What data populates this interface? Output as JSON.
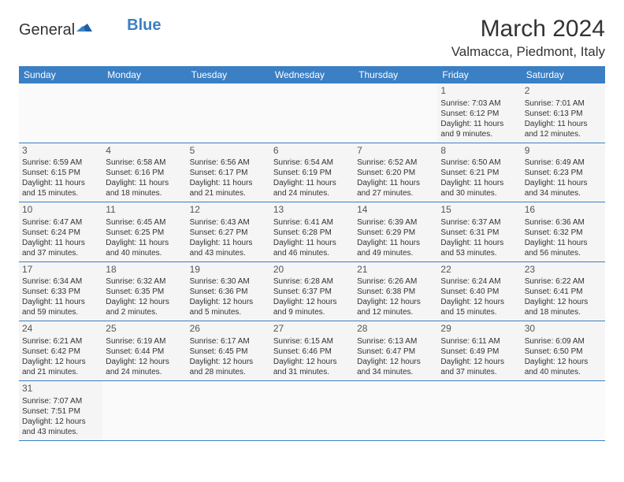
{
  "logo": {
    "general": "General",
    "blue": "Blue"
  },
  "title": "March 2024",
  "location": "Valmacca, Piedmont, Italy",
  "colors": {
    "header_bg": "#3b7fc4",
    "header_text": "#ffffff",
    "row_bg": "#f5f5f5",
    "border": "#3b7fc4",
    "text": "#333333"
  },
  "day_labels": [
    "Sunday",
    "Monday",
    "Tuesday",
    "Wednesday",
    "Thursday",
    "Friday",
    "Saturday"
  ],
  "weeks": [
    [
      null,
      null,
      null,
      null,
      null,
      {
        "d": "1",
        "sr": "Sunrise: 7:03 AM",
        "ss": "Sunset: 6:12 PM",
        "dl1": "Daylight: 11 hours",
        "dl2": "and 9 minutes."
      },
      {
        "d": "2",
        "sr": "Sunrise: 7:01 AM",
        "ss": "Sunset: 6:13 PM",
        "dl1": "Daylight: 11 hours",
        "dl2": "and 12 minutes."
      }
    ],
    [
      {
        "d": "3",
        "sr": "Sunrise: 6:59 AM",
        "ss": "Sunset: 6:15 PM",
        "dl1": "Daylight: 11 hours",
        "dl2": "and 15 minutes."
      },
      {
        "d": "4",
        "sr": "Sunrise: 6:58 AM",
        "ss": "Sunset: 6:16 PM",
        "dl1": "Daylight: 11 hours",
        "dl2": "and 18 minutes."
      },
      {
        "d": "5",
        "sr": "Sunrise: 6:56 AM",
        "ss": "Sunset: 6:17 PM",
        "dl1": "Daylight: 11 hours",
        "dl2": "and 21 minutes."
      },
      {
        "d": "6",
        "sr": "Sunrise: 6:54 AM",
        "ss": "Sunset: 6:19 PM",
        "dl1": "Daylight: 11 hours",
        "dl2": "and 24 minutes."
      },
      {
        "d": "7",
        "sr": "Sunrise: 6:52 AM",
        "ss": "Sunset: 6:20 PM",
        "dl1": "Daylight: 11 hours",
        "dl2": "and 27 minutes."
      },
      {
        "d": "8",
        "sr": "Sunrise: 6:50 AM",
        "ss": "Sunset: 6:21 PM",
        "dl1": "Daylight: 11 hours",
        "dl2": "and 30 minutes."
      },
      {
        "d": "9",
        "sr": "Sunrise: 6:49 AM",
        "ss": "Sunset: 6:23 PM",
        "dl1": "Daylight: 11 hours",
        "dl2": "and 34 minutes."
      }
    ],
    [
      {
        "d": "10",
        "sr": "Sunrise: 6:47 AM",
        "ss": "Sunset: 6:24 PM",
        "dl1": "Daylight: 11 hours",
        "dl2": "and 37 minutes."
      },
      {
        "d": "11",
        "sr": "Sunrise: 6:45 AM",
        "ss": "Sunset: 6:25 PM",
        "dl1": "Daylight: 11 hours",
        "dl2": "and 40 minutes."
      },
      {
        "d": "12",
        "sr": "Sunrise: 6:43 AM",
        "ss": "Sunset: 6:27 PM",
        "dl1": "Daylight: 11 hours",
        "dl2": "and 43 minutes."
      },
      {
        "d": "13",
        "sr": "Sunrise: 6:41 AM",
        "ss": "Sunset: 6:28 PM",
        "dl1": "Daylight: 11 hours",
        "dl2": "and 46 minutes."
      },
      {
        "d": "14",
        "sr": "Sunrise: 6:39 AM",
        "ss": "Sunset: 6:29 PM",
        "dl1": "Daylight: 11 hours",
        "dl2": "and 49 minutes."
      },
      {
        "d": "15",
        "sr": "Sunrise: 6:37 AM",
        "ss": "Sunset: 6:31 PM",
        "dl1": "Daylight: 11 hours",
        "dl2": "and 53 minutes."
      },
      {
        "d": "16",
        "sr": "Sunrise: 6:36 AM",
        "ss": "Sunset: 6:32 PM",
        "dl1": "Daylight: 11 hours",
        "dl2": "and 56 minutes."
      }
    ],
    [
      {
        "d": "17",
        "sr": "Sunrise: 6:34 AM",
        "ss": "Sunset: 6:33 PM",
        "dl1": "Daylight: 11 hours",
        "dl2": "and 59 minutes."
      },
      {
        "d": "18",
        "sr": "Sunrise: 6:32 AM",
        "ss": "Sunset: 6:35 PM",
        "dl1": "Daylight: 12 hours",
        "dl2": "and 2 minutes."
      },
      {
        "d": "19",
        "sr": "Sunrise: 6:30 AM",
        "ss": "Sunset: 6:36 PM",
        "dl1": "Daylight: 12 hours",
        "dl2": "and 5 minutes."
      },
      {
        "d": "20",
        "sr": "Sunrise: 6:28 AM",
        "ss": "Sunset: 6:37 PM",
        "dl1": "Daylight: 12 hours",
        "dl2": "and 9 minutes."
      },
      {
        "d": "21",
        "sr": "Sunrise: 6:26 AM",
        "ss": "Sunset: 6:38 PM",
        "dl1": "Daylight: 12 hours",
        "dl2": "and 12 minutes."
      },
      {
        "d": "22",
        "sr": "Sunrise: 6:24 AM",
        "ss": "Sunset: 6:40 PM",
        "dl1": "Daylight: 12 hours",
        "dl2": "and 15 minutes."
      },
      {
        "d": "23",
        "sr": "Sunrise: 6:22 AM",
        "ss": "Sunset: 6:41 PM",
        "dl1": "Daylight: 12 hours",
        "dl2": "and 18 minutes."
      }
    ],
    [
      {
        "d": "24",
        "sr": "Sunrise: 6:21 AM",
        "ss": "Sunset: 6:42 PM",
        "dl1": "Daylight: 12 hours",
        "dl2": "and 21 minutes."
      },
      {
        "d": "25",
        "sr": "Sunrise: 6:19 AM",
        "ss": "Sunset: 6:44 PM",
        "dl1": "Daylight: 12 hours",
        "dl2": "and 24 minutes."
      },
      {
        "d": "26",
        "sr": "Sunrise: 6:17 AM",
        "ss": "Sunset: 6:45 PM",
        "dl1": "Daylight: 12 hours",
        "dl2": "and 28 minutes."
      },
      {
        "d": "27",
        "sr": "Sunrise: 6:15 AM",
        "ss": "Sunset: 6:46 PM",
        "dl1": "Daylight: 12 hours",
        "dl2": "and 31 minutes."
      },
      {
        "d": "28",
        "sr": "Sunrise: 6:13 AM",
        "ss": "Sunset: 6:47 PM",
        "dl1": "Daylight: 12 hours",
        "dl2": "and 34 minutes."
      },
      {
        "d": "29",
        "sr": "Sunrise: 6:11 AM",
        "ss": "Sunset: 6:49 PM",
        "dl1": "Daylight: 12 hours",
        "dl2": "and 37 minutes."
      },
      {
        "d": "30",
        "sr": "Sunrise: 6:09 AM",
        "ss": "Sunset: 6:50 PM",
        "dl1": "Daylight: 12 hours",
        "dl2": "and 40 minutes."
      }
    ],
    [
      {
        "d": "31",
        "sr": "Sunrise: 7:07 AM",
        "ss": "Sunset: 7:51 PM",
        "dl1": "Daylight: 12 hours",
        "dl2": "and 43 minutes."
      },
      null,
      null,
      null,
      null,
      null,
      null
    ]
  ]
}
